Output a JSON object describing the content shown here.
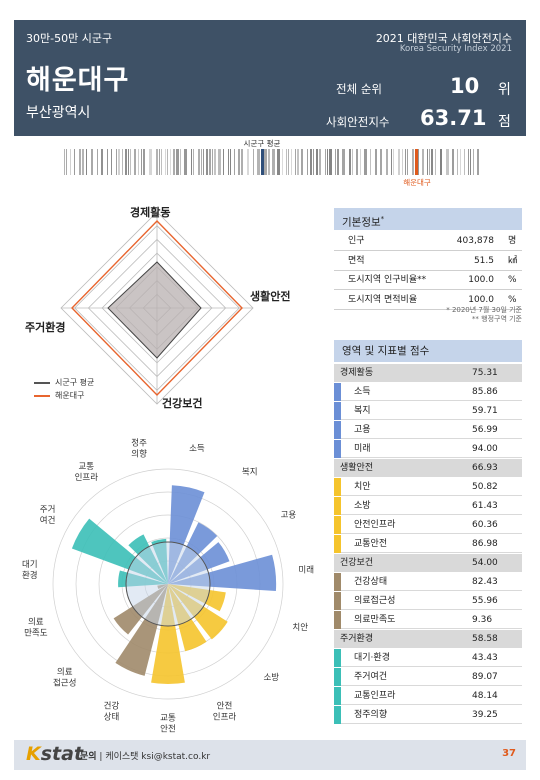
{
  "header": {
    "category": "30만-50만 시군구",
    "name": "해운대구",
    "region": "부산광역시",
    "title": "2021 대한민국 사회안전지수",
    "subtitle": "Korea Security Index 2021",
    "rank_label": "전체 순위",
    "rank_value": "10",
    "rank_unit": "위",
    "index_label": "사회안전지수",
    "index_value": "63.71",
    "index_unit": "점"
  },
  "strip": {
    "avg_label": "시군구 평균",
    "self_label": "해운대구",
    "self_color": "#e05a1c",
    "avg_color": "#2f4f7a"
  },
  "radar": {
    "axes": [
      "경제활동",
      "생활안전",
      "건강보건",
      "주거환경"
    ],
    "legend_avg": "시군구 평균",
    "legend_self": "해운대구",
    "self_color": "#e8652f",
    "avg_color": "#555555"
  },
  "basic_info": {
    "title": "기본정보",
    "title_mark": "*",
    "rows": [
      {
        "label": "인구",
        "value": "403,878",
        "unit": "명"
      },
      {
        "label": "면적",
        "value": "51.5",
        "unit": "㎢"
      },
      {
        "label": "도시지역 인구비율**",
        "value": "100.0",
        "unit": "%"
      },
      {
        "label": "도시지역 면적비율",
        "value": "100.0",
        "unit": "%"
      }
    ],
    "note1": "* 2020년 7월 30일 기준",
    "note2": "** 행정구역 기준"
  },
  "scores": {
    "title": "영역 및 지표별 점수",
    "groups": [
      {
        "name": "경제활동",
        "score": "75.31",
        "color": "#6b8fd6",
        "items": [
          {
            "name": "소득",
            "score": "85.86"
          },
          {
            "name": "복지",
            "score": "59.71"
          },
          {
            "name": "고용",
            "score": "56.99"
          },
          {
            "name": "미래",
            "score": "94.00"
          }
        ]
      },
      {
        "name": "생활안전",
        "score": "66.93",
        "color": "#f5c42c",
        "items": [
          {
            "name": "치안",
            "score": "50.82"
          },
          {
            "name": "소방",
            "score": "61.43"
          },
          {
            "name": "안전인프라",
            "score": "60.36"
          },
          {
            "name": "교통안전",
            "score": "86.98"
          }
        ]
      },
      {
        "name": "건강보건",
        "score": "54.00",
        "color": "#a08a6a",
        "items": [
          {
            "name": "건강상태",
            "score": "82.43"
          },
          {
            "name": "의료접근성",
            "score": "55.96"
          },
          {
            "name": "의료만족도",
            "score": "9.36"
          }
        ]
      },
      {
        "name": "주거환경",
        "score": "58.58",
        "color": "#3bbfb7",
        "items": [
          {
            "name": "대기·환경",
            "score": "43.43"
          },
          {
            "name": "주거여건",
            "score": "89.07"
          },
          {
            "name": "교통인프라",
            "score": "48.14"
          },
          {
            "name": "정주의향",
            "score": "39.25"
          }
        ]
      }
    ]
  },
  "rose": {
    "labels": [
      "소득",
      "복지",
      "고용",
      "미래",
      "치안",
      "소방",
      "안전\n인프라",
      "교통\n안전",
      "건강\n상태",
      "의료\n접근성",
      "의료\n만족도",
      "대기\n환경",
      "주거\n여건",
      "교통\n인프라",
      "정주\n의향"
    ],
    "values": [
      85.86,
      59.71,
      56.99,
      94.0,
      50.82,
      61.43,
      60.36,
      86.98,
      82.43,
      55.96,
      9.36,
      43.43,
      89.07,
      48.14,
      39.25
    ],
    "colors": [
      "#6b8fd6",
      "#6b8fd6",
      "#6b8fd6",
      "#6b8fd6",
      "#f5c42c",
      "#f5c42c",
      "#f5c42c",
      "#f5c42c",
      "#a08a6a",
      "#a08a6a",
      "#a08a6a",
      "#3bbfb7",
      "#3bbfb7",
      "#3bbfb7",
      "#3bbfb7"
    ]
  },
  "footer": {
    "logo_k": "K",
    "logo_rest": "stat",
    "contact_label": "문의",
    "contact_text": "케이스탯 ksi@kstat.co.kr",
    "page": "37"
  }
}
